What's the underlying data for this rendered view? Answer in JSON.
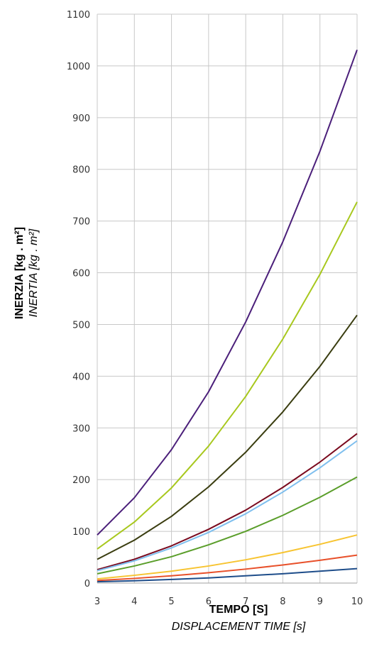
{
  "chart_data": {
    "type": "line",
    "x": [
      3,
      4,
      5,
      6,
      7,
      8,
      9,
      10
    ],
    "xlim": [
      3,
      10
    ],
    "ylim": [
      0,
      1100
    ],
    "xticks": [
      "3",
      "4",
      "5",
      "6",
      "7",
      "8",
      "9",
      "10"
    ],
    "yticks": [
      "0",
      "100",
      "200",
      "300",
      "400",
      "500",
      "600",
      "700",
      "800",
      "900",
      "1000",
      "1100"
    ],
    "xlabel": "TEMPO [S]",
    "xlabel_sub": "DISPLACEMENT TIME [s]",
    "ylabel": "INERZIA [kg . m²]",
    "ylabel_sub": "INERTIA [kg . m²]",
    "grid": true,
    "series": [
      {
        "color": "#4b1f7a",
        "values": [
          93,
          165,
          258,
          370,
          505,
          660,
          835,
          1031
        ]
      },
      {
        "color": "#a8c81e",
        "values": [
          66,
          118,
          184,
          265,
          361,
          472,
          597,
          737
        ]
      },
      {
        "color": "#3a3d10",
        "values": [
          46,
          83,
          129,
          186,
          253,
          331,
          419,
          518
        ]
      },
      {
        "color": "#7a0a1e",
        "values": [
          26,
          46,
          72,
          104,
          141,
          185,
          234,
          289
        ]
      },
      {
        "color": "#7fbfee",
        "values": [
          24,
          43,
          68,
          98,
          134,
          176,
          223,
          275
        ]
      },
      {
        "color": "#5a9e2a",
        "values": [
          18,
          33,
          51,
          74,
          100,
          131,
          166,
          205
        ]
      },
      {
        "color": "#f7c431",
        "values": [
          8,
          15,
          23,
          33,
          45,
          59,
          75,
          93
        ]
      },
      {
        "color": "#e8502a",
        "values": [
          5,
          9,
          14,
          20,
          27,
          35,
          44,
          54
        ]
      },
      {
        "color": "#1e4d8a",
        "values": [
          2.5,
          4.5,
          7,
          10,
          14,
          18,
          23,
          28
        ]
      }
    ]
  }
}
